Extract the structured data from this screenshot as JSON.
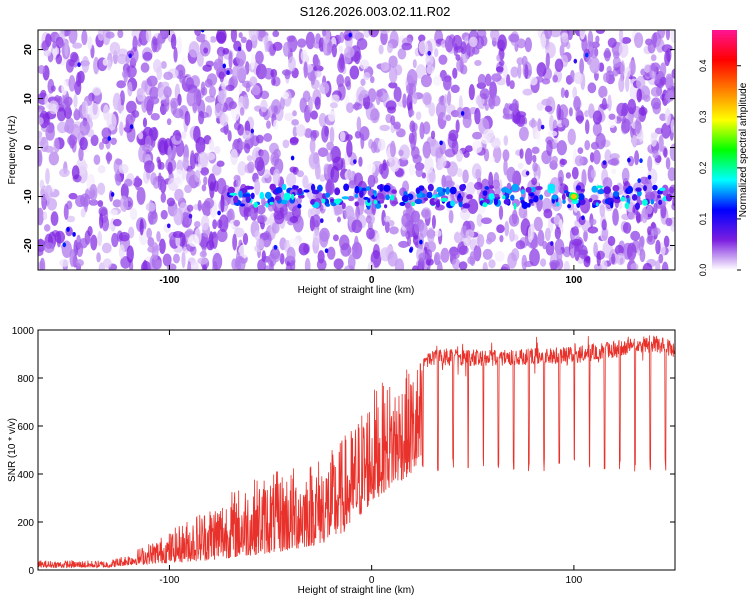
{
  "title": "S126.2026.003.02.11.R02",
  "chart_data": [
    {
      "type": "heatmap",
      "title": "S126.2026.003.02.11.R02",
      "xlabel": "Height of straight line (km)",
      "ylabel": "Frequency (Hz)",
      "xlim": [
        -165,
        150
      ],
      "ylim": [
        -25,
        24
      ],
      "xticks": [
        -100,
        0,
        100
      ],
      "xtick_labels": [
        "-100",
        "0",
        "100"
      ],
      "yticks": [
        20,
        10,
        0,
        -10,
        -20
      ],
      "ytick_labels": [
        "20",
        "10",
        "0",
        "-10",
        "-20"
      ],
      "colorbar": {
        "label": "Normalized spectral amplitude",
        "range": [
          0.0,
          0.47
        ],
        "ticks": [
          0.0,
          0.1,
          0.2,
          0.3,
          0.4
        ],
        "tick_labels": [
          "0.0",
          "0.1",
          "0.2",
          "0.3",
          "0.4"
        ],
        "colors": [
          "#ffffff",
          "#7b1fe0",
          "#0000ff",
          "#00ffff",
          "#00ff00",
          "#ffff00",
          "#ff7f00",
          "#ff0000",
          "#ff1493"
        ]
      },
      "band": {
        "frequency_hz": -10,
        "x_start_km": -70,
        "x_end_km": 150,
        "typical_amplitude": 0.1,
        "peak_amplitude": 0.32,
        "peak_x_km": 100
      },
      "background_amplitude_range": [
        0.0,
        0.06
      ]
    },
    {
      "type": "line",
      "xlabel": "Height of straight line (km)",
      "ylabel": "SNR (10 * v/v)",
      "xlim": [
        -165,
        150
      ],
      "ylim": [
        0,
        1000
      ],
      "xticks": [
        -100,
        0,
        100
      ],
      "xtick_labels": [
        "-100",
        "0",
        "100"
      ],
      "yticks": [
        0,
        200,
        400,
        600,
        800,
        1000
      ],
      "ytick_labels": [
        "0",
        "200",
        "400",
        "600",
        "800",
        "1000"
      ],
      "color": "#e8312a",
      "envelope": {
        "x": [
          -165,
          -130,
          -120,
          -100,
          -80,
          -60,
          -40,
          -20,
          -10,
          0,
          10,
          20,
          25,
          30,
          60,
          100,
          140,
          150
        ],
        "upper": [
          40,
          40,
          70,
          160,
          280,
          380,
          430,
          500,
          600,
          760,
          800,
          850,
          900,
          920,
          920,
          930,
          980,
          950
        ],
        "lower": [
          10,
          10,
          20,
          30,
          40,
          60,
          80,
          120,
          180,
          280,
          350,
          400,
          420,
          430,
          440,
          440,
          470,
          450
        ]
      },
      "periodic_dips": {
        "x_start_km": 25,
        "x_end_km": 150,
        "spacing_km": 7.5,
        "dip_value": 440
      }
    }
  ]
}
